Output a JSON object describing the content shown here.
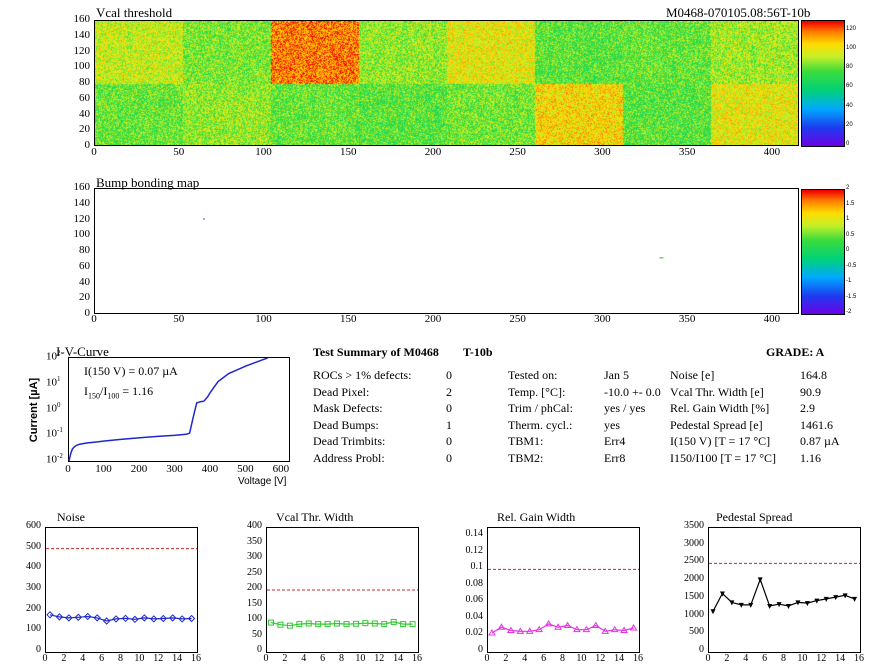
{
  "header": {
    "title": "Vcal threshold",
    "module_id": "M0468-070105.08:56T-10b"
  },
  "colors": {
    "accent_red_dash": "#c8282d",
    "noise_series": "#1e28c8",
    "vcal_series": "#32c832",
    "gain_series": "#e632e6",
    "ped_series": "#000000"
  },
  "chart_data": [
    {
      "type": "heatmap",
      "title": "Vcal threshold",
      "x_ticks": [
        "0",
        "50",
        "100",
        "150",
        "200",
        "250",
        "300",
        "350",
        "400"
      ],
      "y_ticks": [
        "0",
        "20",
        "40",
        "60",
        "80",
        "100",
        "120",
        "140",
        "160"
      ],
      "xlim": [
        0,
        416
      ],
      "ylim": [
        0,
        160
      ],
      "z_ticks": [
        "0",
        "20",
        "40",
        "60",
        "80",
        "100",
        "120"
      ],
      "zlim": [
        0,
        130
      ],
      "roc_grid": {
        "cols": 8,
        "rows": 2
      },
      "roc_means": [
        [
          95,
          85,
          118,
          88,
          100,
          80,
          82,
          90
        ],
        [
          82,
          88,
          82,
          80,
          84,
          105,
          80,
          100
        ]
      ]
    },
    {
      "type": "heatmap",
      "title": "Bump bonding map",
      "x_ticks": [
        "0",
        "50",
        "100",
        "150",
        "200",
        "250",
        "300",
        "350",
        "400"
      ],
      "y_ticks": [
        "0",
        "20",
        "40",
        "60",
        "80",
        "100",
        "120",
        "140",
        "160"
      ],
      "xlim": [
        0,
        416
      ],
      "ylim": [
        0,
        160
      ],
      "z_ticks": [
        "2",
        "1.5",
        "1",
        "0.5",
        "0",
        "-0.5",
        "-1",
        "-1.5",
        "-2"
      ],
      "zlim": [
        -2,
        2
      ],
      "marks": [
        {
          "x": 64,
          "y": 122,
          "z": -1.5
        },
        {
          "x": 334,
          "y": 72,
          "z": 0.4
        }
      ]
    },
    {
      "type": "line",
      "title": "I-V-Curve",
      "xlabel": "Voltage [V]",
      "ylabel": "Current [µA]",
      "xlim": [
        0,
        620
      ],
      "ylim_log10": [
        -2,
        2
      ],
      "x_ticks": [
        "0",
        "100",
        "200",
        "300",
        "400",
        "500",
        "600"
      ],
      "annotation_1": "I(150 V) = 0.07 µA",
      "annotation_2_prefix": "I",
      "annotation_2_sub1": "150",
      "annotation_2_mid": "/I",
      "annotation_2_sub2": "100",
      "annotation_2_value": "=  1.16",
      "x": [
        0,
        5,
        10,
        20,
        30,
        50,
        80,
        100,
        150,
        200,
        250,
        300,
        330,
        340,
        350,
        360,
        370,
        380,
        390,
        400,
        420,
        450,
        500,
        550,
        560
      ],
      "y": [
        0.01,
        0.02,
        0.03,
        0.04,
        0.045,
        0.05,
        0.055,
        0.06,
        0.07,
        0.08,
        0.09,
        0.1,
        0.11,
        0.12,
        0.5,
        1.8,
        2.0,
        2.1,
        3.0,
        5.0,
        12,
        25,
        50,
        90,
        100
      ]
    },
    {
      "type": "line",
      "title": "Noise",
      "x": [
        0,
        1,
        2,
        3,
        4,
        5,
        6,
        7,
        8,
        9,
        10,
        11,
        12,
        13,
        14,
        15
      ],
      "y": [
        180,
        170,
        165,
        168,
        172,
        165,
        150,
        160,
        163,
        158,
        165,
        160,
        162,
        165,
        160,
        162
      ],
      "xlim": [
        0,
        16
      ],
      "ylim": [
        0,
        600
      ],
      "cut": 500,
      "x_ticks": [
        "0",
        "2",
        "4",
        "6",
        "8",
        "10",
        "12",
        "14",
        "16"
      ],
      "y_ticks": [
        "0",
        "100",
        "200",
        "300",
        "400",
        "500",
        "600"
      ]
    },
    {
      "type": "line",
      "title": "Vcal Thr. Width",
      "x": [
        0,
        1,
        2,
        3,
        4,
        5,
        6,
        7,
        8,
        9,
        10,
        11,
        12,
        13,
        14,
        15
      ],
      "y": [
        95,
        88,
        85,
        90,
        92,
        90,
        90,
        92,
        90,
        91,
        93,
        92,
        90,
        97,
        90,
        90
      ],
      "xlim": [
        0,
        16
      ],
      "ylim": [
        0,
        400
      ],
      "cut": 200,
      "x_ticks": [
        "0",
        "2",
        "4",
        "6",
        "8",
        "10",
        "12",
        "14",
        "16"
      ],
      "y_ticks": [
        "0",
        "50",
        "100",
        "150",
        "200",
        "250",
        "300",
        "350",
        "400"
      ]
    },
    {
      "type": "line",
      "title": "Rel. Gain Width",
      "x": [
        0,
        1,
        2,
        3,
        4,
        5,
        6,
        7,
        8,
        9,
        10,
        11,
        12,
        13,
        14,
        15
      ],
      "y": [
        0.023,
        0.03,
        0.026,
        0.025,
        0.025,
        0.027,
        0.034,
        0.03,
        0.032,
        0.027,
        0.027,
        0.032,
        0.025,
        0.027,
        0.026,
        0.029
      ],
      "xlim": [
        0,
        16
      ],
      "ylim": [
        0,
        0.15
      ],
      "cut": 0.1,
      "x_ticks": [
        "0",
        "2",
        "4",
        "6",
        "8",
        "10",
        "12",
        "14",
        "16"
      ],
      "y_ticks": [
        "0",
        "0.02",
        "0.04",
        "0.06",
        "0.08",
        "0.1",
        "0.12",
        "0.14"
      ]
    },
    {
      "type": "line",
      "title": "Pedestal Spread",
      "x": [
        0,
        1,
        2,
        3,
        4,
        5,
        6,
        7,
        8,
        9,
        10,
        11,
        12,
        13,
        14,
        15
      ],
      "y": [
        1150,
        1650,
        1400,
        1330,
        1330,
        2050,
        1300,
        1350,
        1300,
        1400,
        1380,
        1450,
        1500,
        1550,
        1600,
        1500
      ],
      "xlim": [
        0,
        16
      ],
      "ylim": [
        0,
        3500
      ],
      "cut": 2500,
      "x_ticks": [
        "0",
        "2",
        "4",
        "6",
        "8",
        "10",
        "12",
        "14",
        "16"
      ],
      "y_ticks": [
        "0",
        "500",
        "1000",
        "1500",
        "2000",
        "2500",
        "3000",
        "3500"
      ]
    }
  ],
  "summary": {
    "title": "Test Summary of M0468",
    "tag": "T-10b",
    "grade": "GRADE:  A",
    "col1": [
      {
        "label": "ROCs > 1% defects:",
        "value": "0"
      },
      {
        "label": "Dead Pixel:",
        "value": "2"
      },
      {
        "label": "Mask Defects:",
        "value": "0"
      },
      {
        "label": "Dead Bumps:",
        "value": "1"
      },
      {
        "label": "Dead Trimbits:",
        "value": "0"
      },
      {
        "label": "Address Probl:",
        "value": "0"
      }
    ],
    "col2": [
      {
        "label": "Tested on:",
        "value": "Jan 5"
      },
      {
        "label": "Temp. [°C]:",
        "value": "-10.0 +- 0.0"
      },
      {
        "label": "Trim / phCal:",
        "value": "yes / yes"
      },
      {
        "label": "Therm. cycl.:",
        "value": "yes"
      },
      {
        "label": "TBM1:",
        "value": "Err4"
      },
      {
        "label": "TBM2:",
        "value": "Err8"
      }
    ],
    "col3": [
      {
        "label": "Noise [e]",
        "value": "164.8"
      },
      {
        "label": "Vcal Thr. Width [e]",
        "value": "90.9"
      },
      {
        "label": "Rel. Gain Width [%]",
        "value": "2.9"
      },
      {
        "label": "Pedestal Spread [e]",
        "value": "1461.6"
      },
      {
        "label": "I(150 V)  [T = 17 °C]",
        "value": "0.87 µA"
      },
      {
        "label": "I150/I100  [T = 17 °C]",
        "value": "1.16"
      }
    ]
  }
}
